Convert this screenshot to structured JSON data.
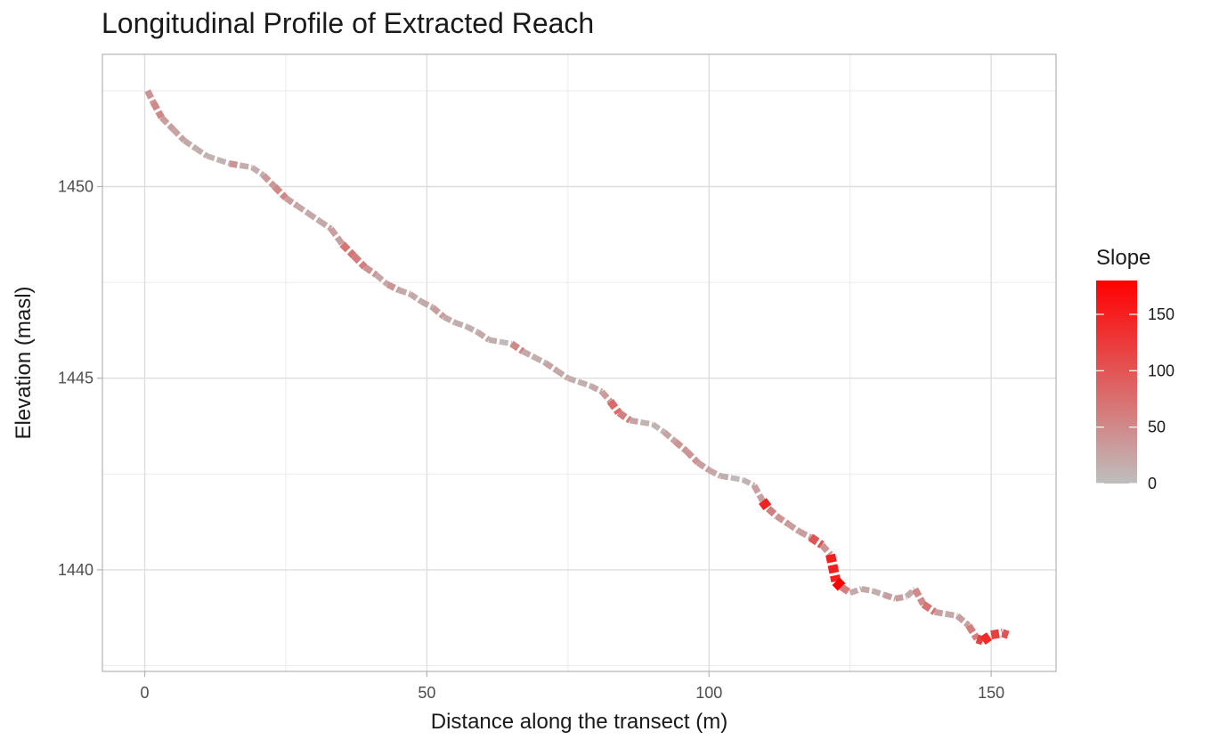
{
  "chart_data": {
    "type": "line",
    "title": "Longitudinal Profile of Extracted Reach",
    "xlabel": "Distance along the transect (m)",
    "ylabel": "Elevation (masl)",
    "xlim": [
      -7.5,
      161.5
    ],
    "ylim": [
      1437.35,
      1453.45
    ],
    "x_ticks": [
      0,
      50,
      100,
      150
    ],
    "x_tick_labels": [
      "0",
      "50",
      "100",
      "150"
    ],
    "y_ticks": [
      1440,
      1445,
      1450
    ],
    "y_tick_labels": [
      "1440",
      "1445",
      "1450"
    ],
    "grid": true,
    "line_style": "dashed",
    "legend": {
      "title": "Slope",
      "position": "right",
      "range": [
        0,
        180
      ],
      "ticks": [
        0,
        50,
        100,
        150
      ],
      "tick_labels": [
        "0",
        "50",
        "100",
        "150"
      ],
      "low_color": "#BEBEBE",
      "high_color": "#FF0000"
    },
    "series": [
      {
        "x": [
          0.5,
          1.5,
          3,
          5,
          7,
          9,
          11,
          13,
          15,
          17,
          19,
          21,
          23,
          25,
          27,
          29,
          31,
          33,
          35,
          37,
          39,
          41,
          43,
          45,
          47,
          49,
          51,
          53,
          55,
          57,
          59,
          61,
          63,
          65,
          67,
          69,
          71,
          73,
          75,
          77,
          79,
          81,
          82.5,
          84,
          86,
          88,
          90,
          92,
          94,
          96,
          98,
          100,
          102,
          104,
          106,
          108,
          109.5,
          110.5,
          112,
          114,
          116,
          118,
          120,
          121.5,
          122.5,
          123.5,
          125,
          127,
          129,
          131,
          133,
          135,
          136.5,
          138,
          140,
          142,
          144,
          146,
          147.5,
          148.5,
          150,
          152,
          153
        ],
        "y": [
          1452.5,
          1452.2,
          1451.8,
          1451.5,
          1451.2,
          1451.0,
          1450.8,
          1450.7,
          1450.6,
          1450.55,
          1450.5,
          1450.3,
          1450.0,
          1449.7,
          1449.5,
          1449.3,
          1449.1,
          1448.9,
          1448.5,
          1448.2,
          1447.9,
          1447.7,
          1447.45,
          1447.3,
          1447.2,
          1447.0,
          1446.85,
          1446.6,
          1446.45,
          1446.35,
          1446.2,
          1446.0,
          1445.95,
          1445.9,
          1445.7,
          1445.55,
          1445.4,
          1445.2,
          1445.0,
          1444.9,
          1444.8,
          1444.65,
          1444.4,
          1444.1,
          1443.9,
          1443.85,
          1443.8,
          1443.6,
          1443.35,
          1443.1,
          1442.8,
          1442.6,
          1442.45,
          1442.4,
          1442.35,
          1442.2,
          1441.8,
          1441.6,
          1441.4,
          1441.2,
          1441.0,
          1440.85,
          1440.65,
          1440.4,
          1439.7,
          1439.55,
          1439.4,
          1439.5,
          1439.45,
          1439.35,
          1439.25,
          1439.3,
          1439.5,
          1439.1,
          1438.9,
          1438.85,
          1438.8,
          1438.55,
          1438.2,
          1438.15,
          1438.3,
          1438.35,
          1438.3
        ],
        "slope": [
          40,
          50,
          30,
          25,
          20,
          15,
          10,
          10,
          40,
          15,
          15,
          35,
          50,
          30,
          20,
          20,
          20,
          30,
          70,
          60,
          40,
          20,
          40,
          20,
          20,
          20,
          30,
          20,
          15,
          15,
          20,
          15,
          5,
          50,
          20,
          15,
          25,
          20,
          15,
          15,
          20,
          30,
          80,
          60,
          25,
          10,
          10,
          25,
          40,
          40,
          30,
          20,
          15,
          5,
          10,
          30,
          150,
          60,
          40,
          30,
          30,
          100,
          40,
          150,
          180,
          60,
          20,
          20,
          15,
          30,
          30,
          20,
          50,
          70,
          30,
          20,
          30,
          60,
          120,
          140,
          120,
          100,
          20
        ]
      }
    ]
  }
}
